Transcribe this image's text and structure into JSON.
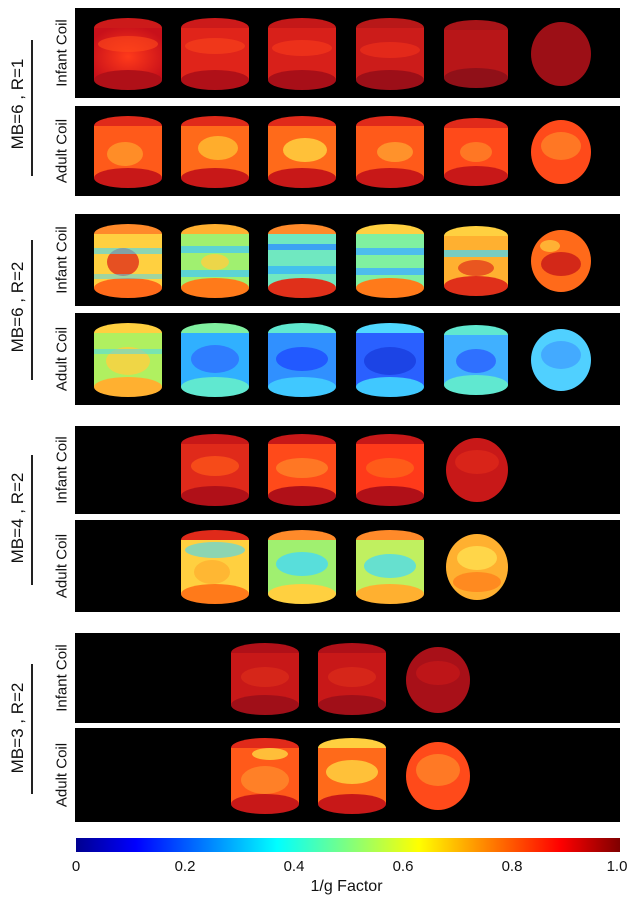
{
  "groups": [
    {
      "label": "MB=6 , R=1",
      "infant_coil_label": "Infant Coil",
      "adult_coil_label": "Adult Coil"
    },
    {
      "label": "MB=6 , R=2",
      "infant_coil_label": "Infant Coil",
      "adult_coil_label": "Adult Coil"
    },
    {
      "label": "MB=4 , R=2",
      "infant_coil_label": "Infant Coil",
      "adult_coil_label": "Adult Coil"
    },
    {
      "label": "MB=3 , R=2",
      "infant_coil_label": "Infant Coil",
      "adult_coil_label": "Adult Coil"
    }
  ],
  "colorbar": {
    "ticks": [
      "0",
      "0.2",
      "0.4",
      "0.6",
      "0.8",
      "1.0"
    ],
    "title": "1/g Factor"
  },
  "colors": {
    "panel_background": "#000000",
    "deep_red": "#8b0000",
    "red": "#e0201a",
    "orange": "#ff7a1a",
    "yellow": "#ffd84a",
    "cyan": "#33d8ff",
    "blue": "#1a55ff"
  }
}
